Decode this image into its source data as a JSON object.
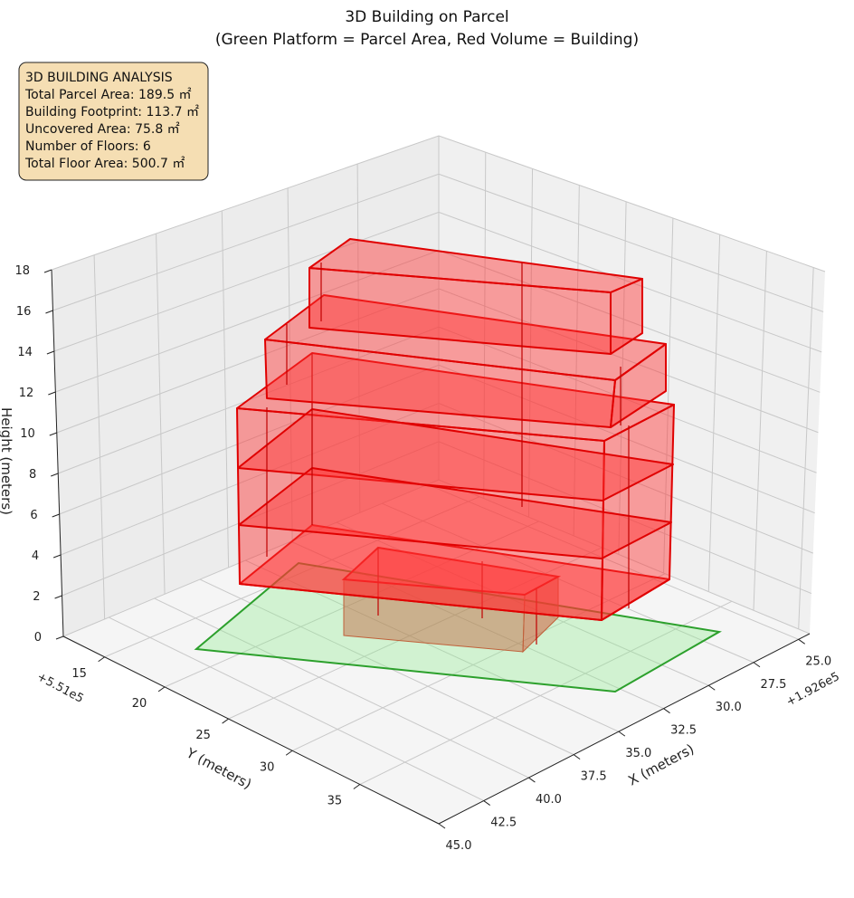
{
  "chart_data": {
    "type": "3d-bar",
    "title": "3D Building on Parcel",
    "subtitle": "(Green Platform = Parcel Area, Red Volume = Building)",
    "xlabel": "X (meters)",
    "ylabel": "Y (meters)",
    "zlabel": "Height (meters)",
    "x_offset": "+1.926e5",
    "y_offset": "+5.51e5",
    "x_ticks": [
      "25.0",
      "27.5",
      "30.0",
      "32.5",
      "35.0",
      "37.5",
      "40.0",
      "42.5",
      "45.0"
    ],
    "y_ticks": [
      "15",
      "20",
      "25",
      "30",
      "35"
    ],
    "z_ticks": [
      "0",
      "2",
      "4",
      "6",
      "8",
      "10",
      "12",
      "14",
      "16",
      "18"
    ],
    "zlim": [
      0,
      18
    ],
    "colors": {
      "parcel": "#2ca02c",
      "building": "#ff0000",
      "annex": "#c0603a"
    }
  },
  "info": {
    "lines": [
      "3D BUILDING ANALYSIS",
      "Total Parcel Area: 189.5 ㎡",
      "Building Footprint: 113.7 ㎡",
      "Uncovered Area: 75.8 ㎡",
      "Number of Floors: 6",
      "Total Floor Area: 500.7 ㎡"
    ]
  }
}
